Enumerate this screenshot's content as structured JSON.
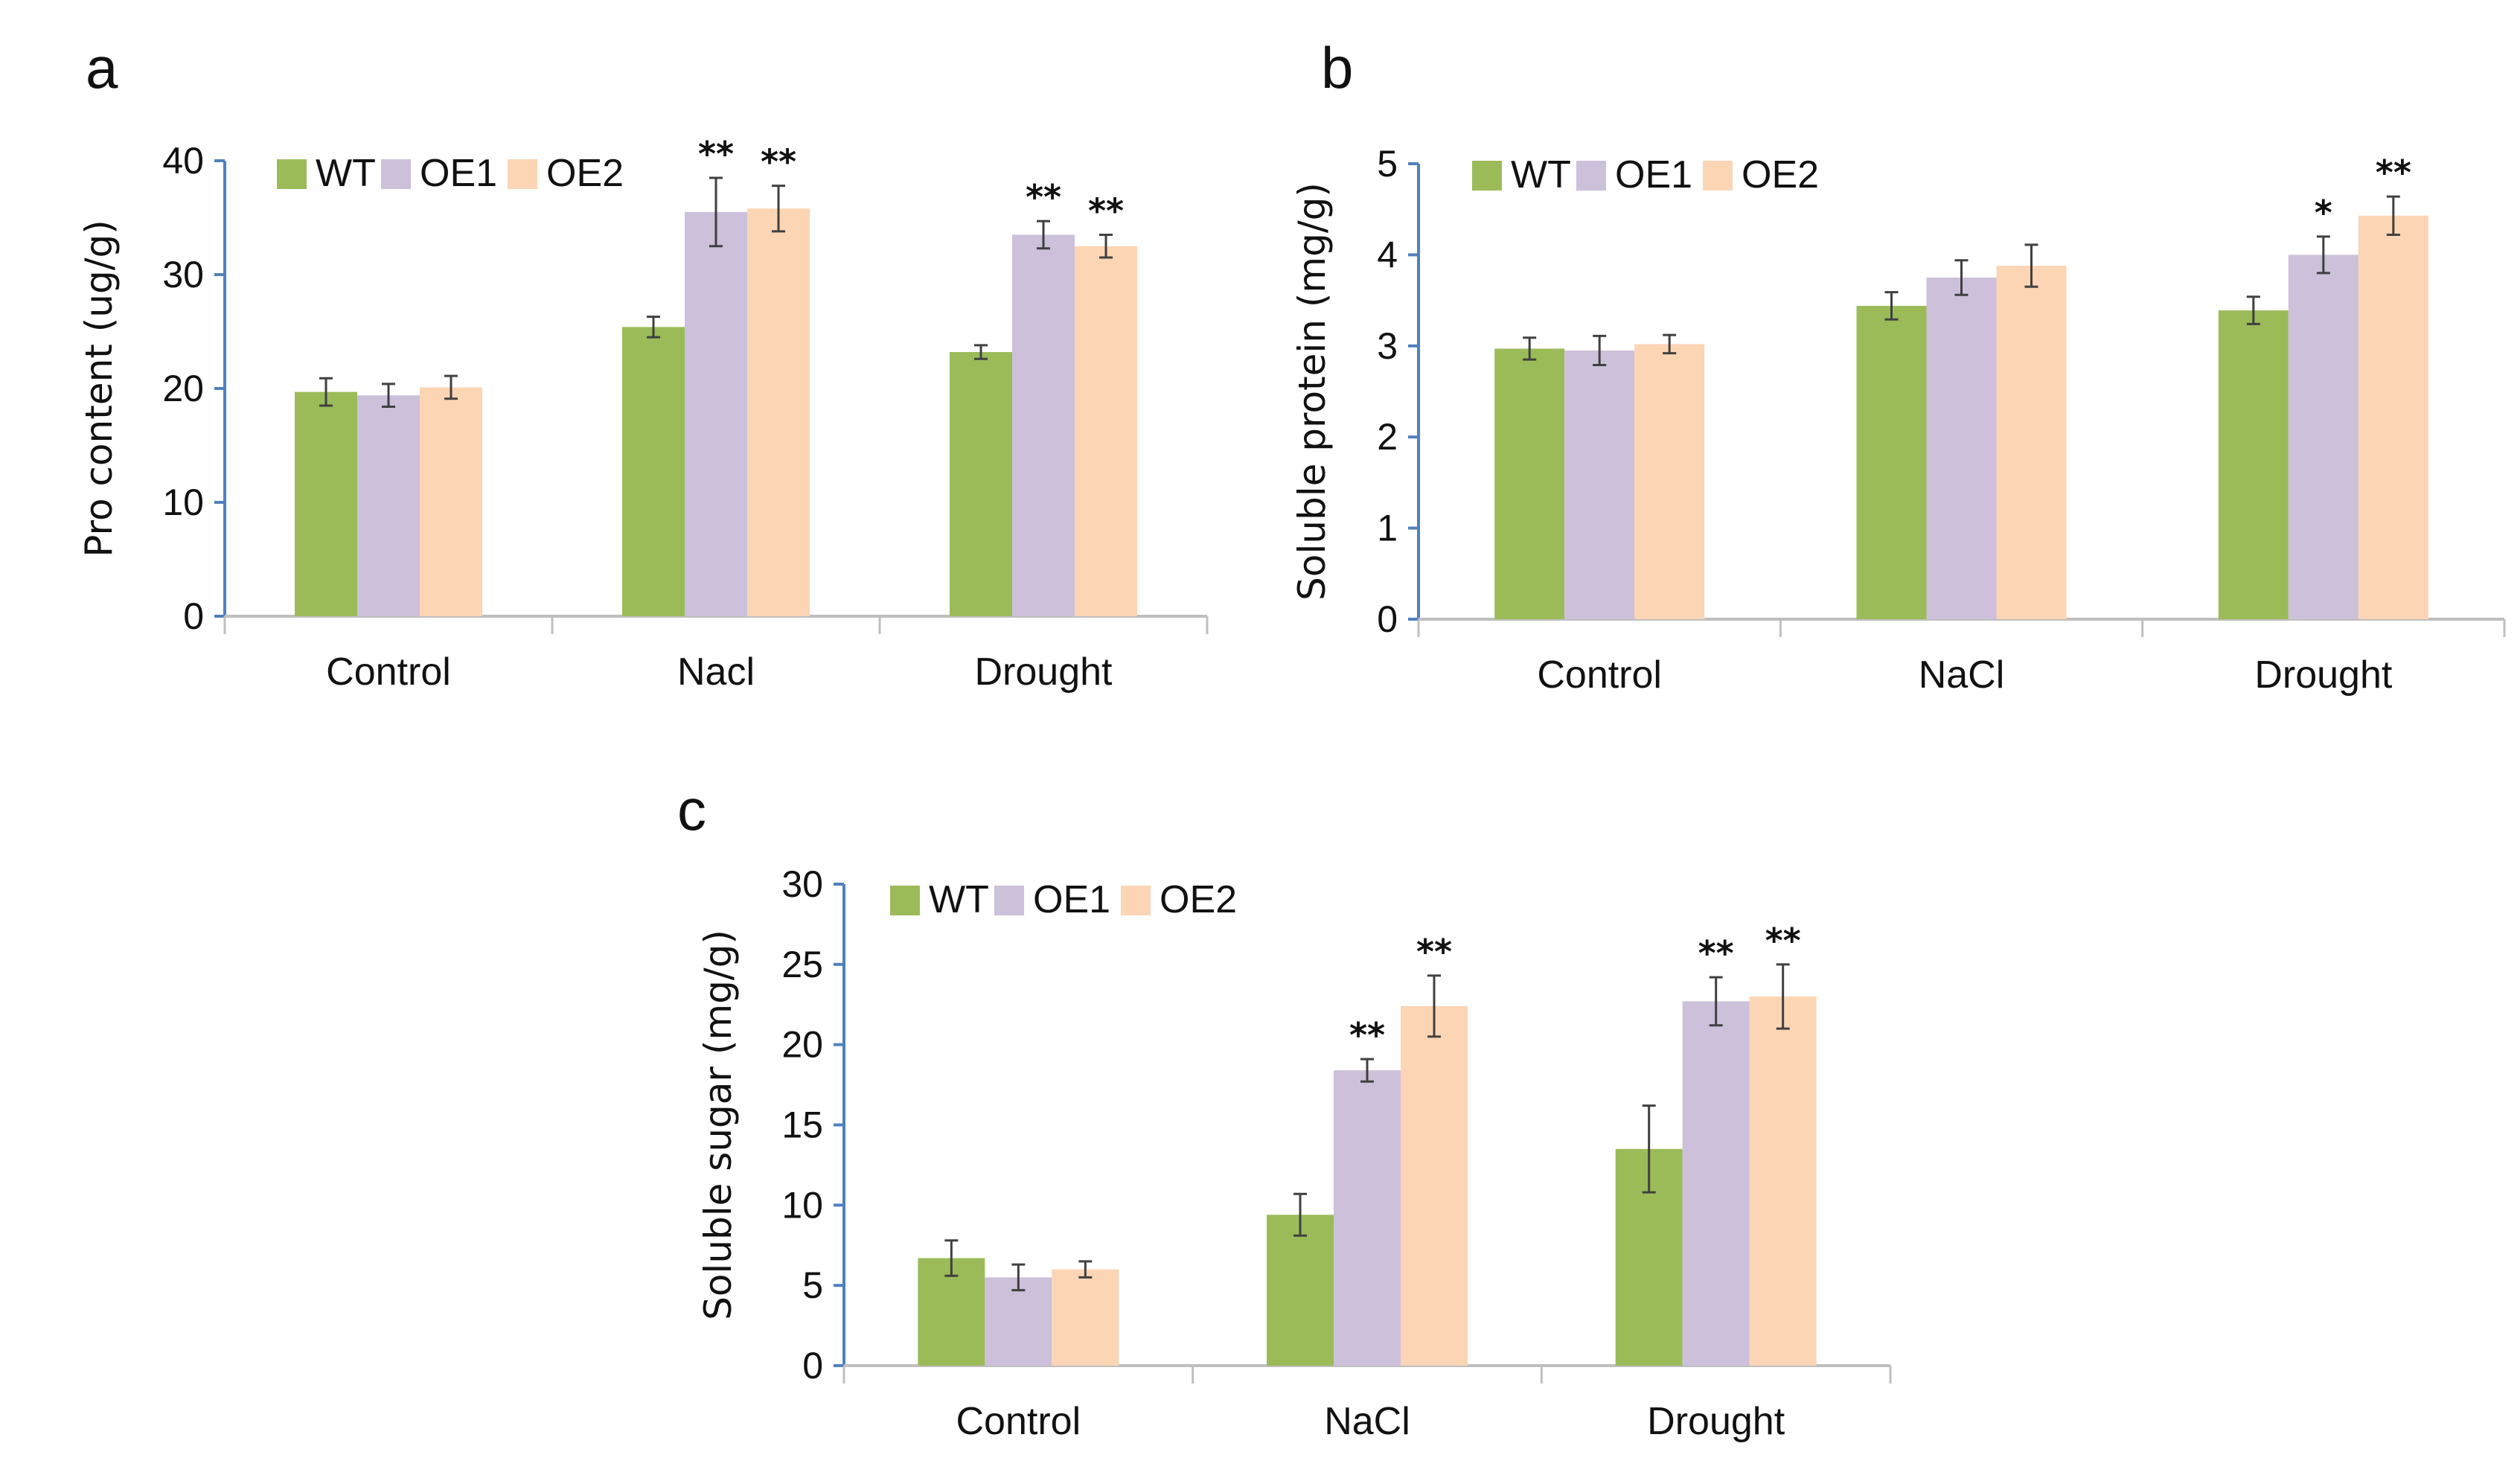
{
  "colors": {
    "WT": "#9bbb59",
    "OE1": "#ccc0da",
    "OE2": "#fcd5b5",
    "axis_y": "#4f81bd",
    "axis_x": "#bfbfbf",
    "error": "#404040"
  },
  "chart_data": [
    {
      "panel": "a",
      "type": "bar",
      "title": "",
      "xlabel": "",
      "ylabel": "Pro content (ug/g)",
      "ylim": [
        0,
        40
      ],
      "yticks": [
        0,
        10,
        20,
        30,
        40
      ],
      "categories": [
        "Control",
        "Nacl",
        "Drought"
      ],
      "legend": {
        "entries": [
          "WT",
          "OE1",
          "OE2"
        ],
        "placement": "top-left"
      },
      "grid": false,
      "series": [
        {
          "name": "WT",
          "values": [
            19.7,
            25.4,
            23.2
          ],
          "errors": [
            1.2,
            0.9,
            0.6
          ],
          "significance": [
            "",
            "",
            ""
          ]
        },
        {
          "name": "OE1",
          "values": [
            19.4,
            35.5,
            33.5
          ],
          "errors": [
            1.0,
            3.0,
            1.2
          ],
          "significance": [
            "",
            "**",
            "**"
          ]
        },
        {
          "name": "OE2",
          "values": [
            20.1,
            35.8,
            32.5
          ],
          "errors": [
            1.0,
            2.0,
            1.0
          ],
          "significance": [
            "",
            "**",
            "**"
          ]
        }
      ]
    },
    {
      "panel": "b",
      "type": "bar",
      "title": "",
      "xlabel": "",
      "ylabel": "Soluble protein (mg/g)",
      "ylim": [
        0,
        5
      ],
      "yticks": [
        0,
        1,
        2,
        3,
        4,
        5
      ],
      "categories": [
        "Control",
        "NaCl",
        "Drought"
      ],
      "legend": {
        "entries": [
          "WT",
          "OE1",
          "OE2"
        ],
        "placement": "top-left"
      },
      "grid": false,
      "series": [
        {
          "name": "WT",
          "values": [
            2.97,
            3.44,
            3.39
          ],
          "errors": [
            0.12,
            0.15,
            0.15
          ],
          "significance": [
            "",
            "",
            ""
          ]
        },
        {
          "name": "OE1",
          "values": [
            2.95,
            3.75,
            4.0
          ],
          "errors": [
            0.16,
            0.19,
            0.2
          ],
          "significance": [
            "",
            "",
            "*"
          ]
        },
        {
          "name": "OE2",
          "values": [
            3.02,
            3.88,
            4.43
          ],
          "errors": [
            0.1,
            0.23,
            0.21
          ],
          "significance": [
            "",
            "",
            "**"
          ]
        }
      ]
    },
    {
      "panel": "c",
      "type": "bar",
      "title": "",
      "xlabel": "",
      "ylabel": "Soluble sugar (mg/g)",
      "ylim": [
        0,
        30
      ],
      "yticks": [
        0,
        5,
        10,
        15,
        20,
        25,
        30
      ],
      "categories": [
        "Control",
        "NaCl",
        "Drought"
      ],
      "legend": {
        "entries": [
          "WT",
          "OE1",
          "OE2"
        ],
        "placement": "top-left"
      },
      "grid": false,
      "series": [
        {
          "name": "WT",
          "values": [
            6.7,
            9.4,
            13.5
          ],
          "errors": [
            1.1,
            1.3,
            2.7
          ],
          "significance": [
            "",
            "",
            ""
          ]
        },
        {
          "name": "OE1",
          "values": [
            5.5,
            18.4,
            22.7
          ],
          "errors": [
            0.8,
            0.7,
            1.5
          ],
          "significance": [
            "",
            "**",
            "**"
          ]
        },
        {
          "name": "OE2",
          "values": [
            6.0,
            22.4,
            23.0
          ],
          "errors": [
            0.5,
            1.9,
            2.0
          ],
          "significance": [
            "",
            "**",
            "**"
          ]
        }
      ]
    }
  ]
}
